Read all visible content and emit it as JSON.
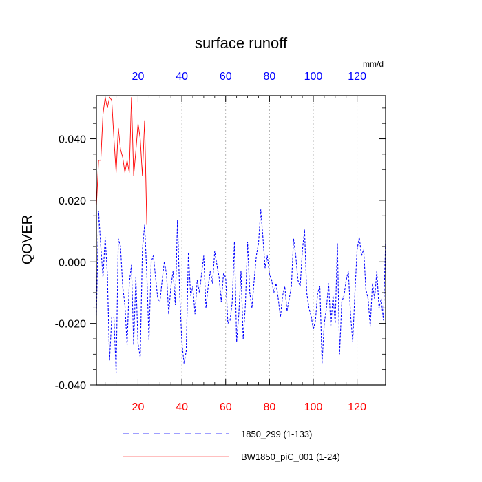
{
  "chart_data": {
    "type": "line",
    "title": "surface runoff",
    "ylabel": "QOVER",
    "top_axis_units": "mm/d",
    "xlim": [
      1,
      133
    ],
    "ylim": [
      -0.04,
      0.054
    ],
    "xticks": [
      20,
      40,
      60,
      80,
      100,
      120
    ],
    "xtick_labels": [
      "20",
      "40",
      "60",
      "80",
      "100",
      "120"
    ],
    "yticks": [
      -0.04,
      -0.02,
      0.0,
      0.02,
      0.04
    ],
    "ytick_labels": [
      "-0.040",
      "-0.020",
      "0.000",
      "0.020",
      "0.040"
    ],
    "bottom_tick_color": "#ff0000",
    "top_tick_color": "#0000ff",
    "grid": "vertical dotted at top-axis ticks",
    "legend_position": "bottom",
    "series": [
      {
        "name": "1850_299 (1-133)",
        "color": "#0000ff",
        "style": "dashed",
        "x_start": 1,
        "values": [
          -0.0175,
          0.0165,
          0.005,
          -0.005,
          0.008,
          -0.004,
          -0.032,
          -0.018,
          -0.018,
          -0.036,
          0.0075,
          0.005,
          -0.008,
          -0.014,
          -0.027,
          -0.007,
          -0.001,
          -0.027,
          -0.005,
          -0.0265,
          -0.031,
          0.004,
          0.012,
          -0.004,
          -0.0255,
          0.0,
          0.002,
          -0.005,
          -0.012,
          -0.013,
          -0.006,
          0.0,
          -0.004,
          -0.017,
          -0.008,
          -0.003,
          -0.014,
          0.0135,
          -0.01,
          -0.026,
          -0.033,
          -0.029,
          0.003,
          -0.011,
          -0.008,
          -0.017,
          -0.006,
          -0.01,
          -0.004,
          0.002,
          -0.015,
          -0.008,
          -0.003,
          -0.007,
          0.0035,
          -0.001,
          -0.005,
          -0.013,
          -0.004,
          -0.005,
          -0.02,
          -0.019,
          -0.013,
          0.0065,
          -0.026,
          -0.017,
          -0.003,
          -0.025,
          -0.014,
          0.0065,
          -0.01,
          -0.015,
          -0.006,
          0.002,
          0.006,
          0.017,
          0.008,
          -0.002,
          0.002,
          -0.004,
          -0.006,
          -0.01,
          -0.007,
          -0.012,
          -0.018,
          -0.011,
          -0.008,
          -0.016,
          -0.012,
          -0.008,
          0.0075,
          0.002,
          -0.006,
          -0.008,
          0.0035,
          0.0105,
          -0.01,
          -0.015,
          -0.0175,
          -0.022,
          -0.019,
          -0.01,
          -0.008,
          -0.033,
          -0.02,
          -0.015,
          -0.007,
          -0.021,
          -0.011,
          -0.02,
          0.006,
          -0.03,
          -0.013,
          -0.011,
          -0.006,
          -0.003,
          -0.017,
          -0.026,
          -0.01,
          0.004,
          0.008,
          0.002,
          0.004,
          -0.009,
          -0.012,
          -0.021,
          -0.007,
          -0.012,
          -0.003,
          -0.015,
          -0.012,
          -0.019,
          0.007
        ]
      },
      {
        "name": "BW1850_piC_001 (1-24)",
        "color": "#ff0000",
        "style": "solid",
        "x_start": 1,
        "values": [
          0.018,
          0.033,
          0.033,
          0.048,
          0.0535,
          0.05,
          0.0535,
          0.0525,
          0.04,
          0.029,
          0.0435,
          0.0365,
          0.034,
          0.029,
          0.033,
          0.029,
          0.0535,
          0.028,
          0.036,
          0.045,
          0.04,
          0.028,
          0.046,
          0.012
        ]
      }
    ]
  }
}
